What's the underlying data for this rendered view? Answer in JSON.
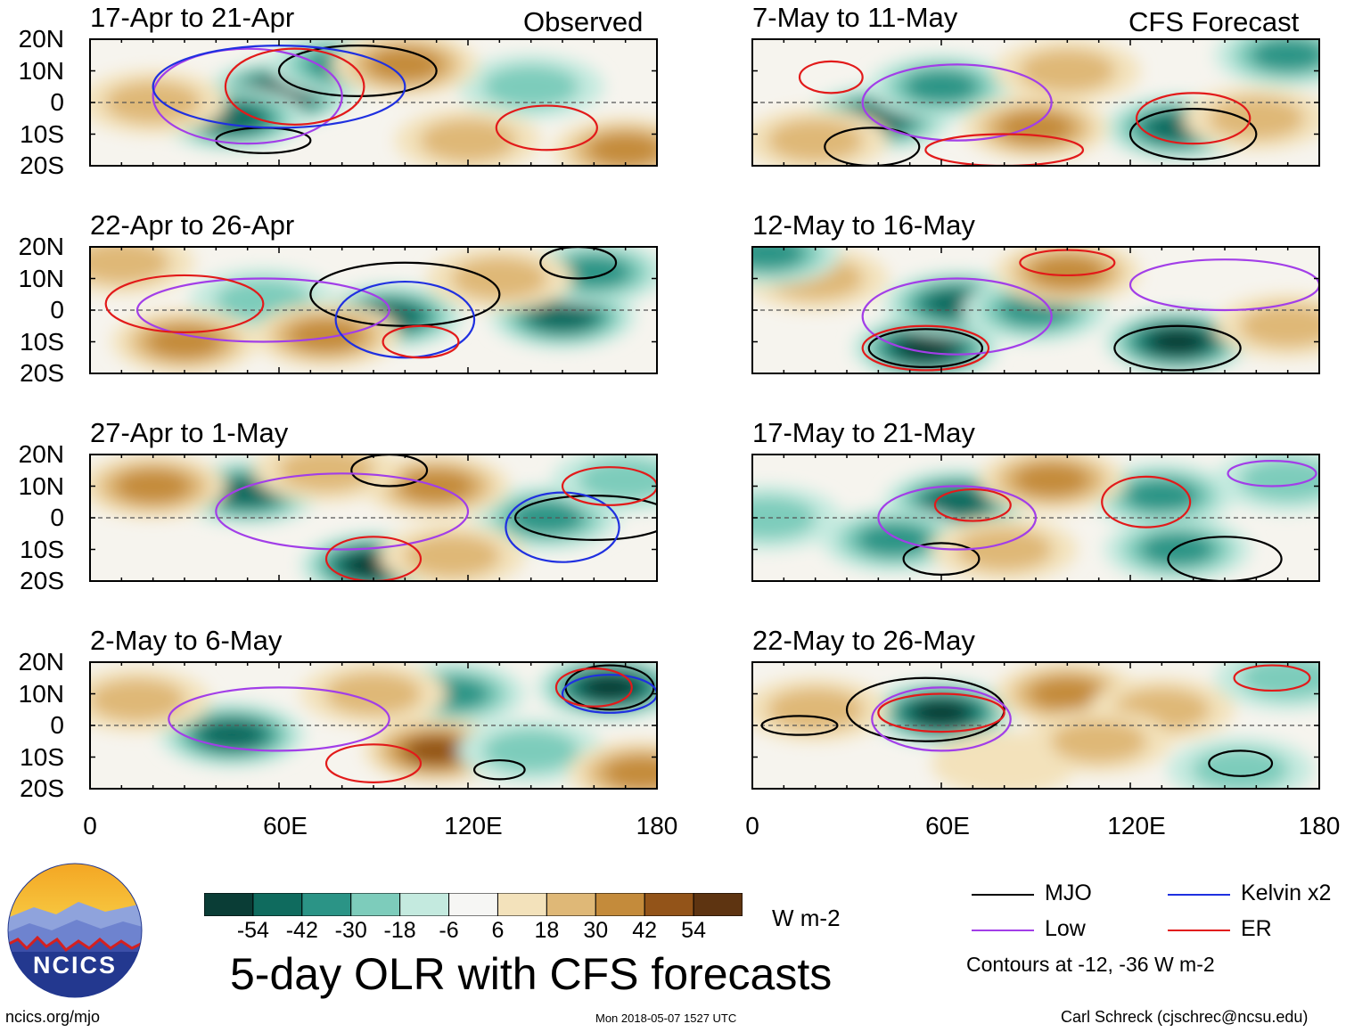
{
  "chart_data": {
    "type": "heatmap",
    "title": "5-day OLR with CFS forecasts",
    "unit": "W m-2",
    "column_headers": [
      "Observed",
      "CFS Forecast"
    ],
    "lat_labels": [
      "20N",
      "10N",
      "0",
      "10S",
      "20S"
    ],
    "lon_labels": [
      "0",
      "60E",
      "120E",
      "180"
    ],
    "lat_range": [
      -20,
      20
    ],
    "lon_range": [
      0,
      180
    ],
    "contour_levels_text": "Contours at -12, -36 W m-2",
    "colorbar": {
      "ticks": [
        "-54",
        "-42",
        "-30",
        "-18",
        "-6",
        "6",
        "18",
        "30",
        "42",
        "54"
      ],
      "colors": [
        "#0a3d36",
        "#0f6b5e",
        "#2b9486",
        "#7dccbb",
        "#c4eadf",
        "#f6f6f4",
        "#f3e2bb",
        "#dfb877",
        "#c48b3b",
        "#935419",
        "#5e3411"
      ]
    },
    "legend": [
      {
        "label": "MJO",
        "color": "#000000"
      },
      {
        "label": "Kelvin x2",
        "color": "#1f30e0"
      },
      {
        "label": "Low",
        "color": "#a23ee8"
      },
      {
        "label": "ER",
        "color": "#e21a1a"
      }
    ],
    "panels": [
      {
        "title": "17-Apr to 21-Apr",
        "column": "Observed",
        "anomalies": [
          {
            "lon": 60,
            "lat": 3,
            "value": -54
          },
          {
            "lon": 45,
            "lat": -5,
            "value": -48
          },
          {
            "lon": 80,
            "lat": 12,
            "value": -30
          },
          {
            "lon": 140,
            "lat": 5,
            "value": -18
          },
          {
            "lon": 100,
            "lat": 12,
            "value": 30
          },
          {
            "lon": 20,
            "lat": 0,
            "value": 18
          },
          {
            "lon": 170,
            "lat": -15,
            "value": 30
          },
          {
            "lon": 120,
            "lat": -12,
            "value": 18
          }
        ],
        "contours": [
          {
            "type": "MJO",
            "lon": 85,
            "lat": 10,
            "rlon": 25,
            "rlat": 8
          },
          {
            "type": "MJO",
            "lon": 55,
            "lat": -12,
            "rlon": 15,
            "rlat": 4
          },
          {
            "type": "Low",
            "lon": 50,
            "lat": 2,
            "rlon": 30,
            "rlat": 15
          },
          {
            "type": "Kelvin x2",
            "lon": 60,
            "lat": 5,
            "rlon": 40,
            "rlat": 13
          },
          {
            "type": "ER",
            "lon": 65,
            "lat": 5,
            "rlon": 22,
            "rlat": 12
          },
          {
            "type": "ER",
            "lon": 145,
            "lat": -8,
            "rlon": 16,
            "rlat": 7
          }
        ]
      },
      {
        "title": "22-Apr to 26-Apr",
        "column": "Observed",
        "anomalies": [
          {
            "lon": 95,
            "lat": -2,
            "value": -42
          },
          {
            "lon": 150,
            "lat": -2,
            "value": -42
          },
          {
            "lon": 160,
            "lat": 12,
            "value": -30
          },
          {
            "lon": 55,
            "lat": 3,
            "value": -18
          },
          {
            "lon": 30,
            "lat": -10,
            "value": 30
          },
          {
            "lon": 75,
            "lat": -8,
            "value": 30
          },
          {
            "lon": 130,
            "lat": 10,
            "value": 18
          },
          {
            "lon": 10,
            "lat": 15,
            "value": 18
          }
        ],
        "contours": [
          {
            "type": "MJO",
            "lon": 100,
            "lat": 5,
            "rlon": 30,
            "rlat": 10
          },
          {
            "type": "MJO",
            "lon": 155,
            "lat": 15,
            "rlon": 12,
            "rlat": 5
          },
          {
            "type": "Low",
            "lon": 55,
            "lat": 0,
            "rlon": 40,
            "rlat": 10
          },
          {
            "type": "Kelvin x2",
            "lon": 100,
            "lat": -3,
            "rlon": 22,
            "rlat": 12
          },
          {
            "type": "ER",
            "lon": 30,
            "lat": 2,
            "rlon": 25,
            "rlat": 9
          },
          {
            "type": "ER",
            "lon": 105,
            "lat": -10,
            "rlon": 12,
            "rlat": 5
          }
        ]
      },
      {
        "title": "27-Apr to 1-May",
        "column": "Observed",
        "anomalies": [
          {
            "lon": 50,
            "lat": 8,
            "value": -42
          },
          {
            "lon": 90,
            "lat": -15,
            "value": -54
          },
          {
            "lon": 145,
            "lat": 0,
            "value": -30
          },
          {
            "lon": 20,
            "lat": 10,
            "value": 30
          },
          {
            "lon": 110,
            "lat": 10,
            "value": 30
          },
          {
            "lon": 115,
            "lat": -12,
            "value": 18
          },
          {
            "lon": 170,
            "lat": 12,
            "value": -18
          },
          {
            "lon": 75,
            "lat": 15,
            "value": 18
          }
        ],
        "contours": [
          {
            "type": "MJO",
            "lon": 95,
            "lat": 15,
            "rlon": 12,
            "rlat": 5
          },
          {
            "type": "MJO",
            "lon": 160,
            "lat": 0,
            "rlon": 25,
            "rlat": 7
          },
          {
            "type": "Low",
            "lon": 80,
            "lat": 2,
            "rlon": 40,
            "rlat": 12
          },
          {
            "type": "Kelvin x2",
            "lon": 150,
            "lat": -3,
            "rlon": 18,
            "rlat": 11
          },
          {
            "type": "ER",
            "lon": 90,
            "lat": -13,
            "rlon": 15,
            "rlat": 7
          },
          {
            "type": "ER",
            "lon": 165,
            "lat": 10,
            "rlon": 15,
            "rlat": 6
          }
        ]
      },
      {
        "title": "2-May to 6-May",
        "column": "Observed",
        "anomalies": [
          {
            "lon": 165,
            "lat": 12,
            "value": -54
          },
          {
            "lon": 45,
            "lat": -3,
            "value": -42
          },
          {
            "lon": 115,
            "lat": 10,
            "value": -30
          },
          {
            "lon": 110,
            "lat": -8,
            "value": 42
          },
          {
            "lon": 90,
            "lat": 10,
            "value": 18
          },
          {
            "lon": 15,
            "lat": 8,
            "value": 18
          },
          {
            "lon": 140,
            "lat": -8,
            "value": -18
          },
          {
            "lon": 175,
            "lat": -15,
            "value": 30
          }
        ],
        "contours": [
          {
            "type": "MJO",
            "lon": 165,
            "lat": 12,
            "rlon": 14,
            "rlat": 7
          },
          {
            "type": "MJO",
            "lon": 130,
            "lat": -14,
            "rlon": 8,
            "rlat": 3
          },
          {
            "type": "Low",
            "lon": 60,
            "lat": 2,
            "rlon": 35,
            "rlat": 10
          },
          {
            "type": "Kelvin x2",
            "lon": 165,
            "lat": 10,
            "rlon": 15,
            "rlat": 6
          },
          {
            "type": "ER",
            "lon": 90,
            "lat": -12,
            "rlon": 15,
            "rlat": 6
          },
          {
            "type": "ER",
            "lon": 160,
            "lat": 12,
            "rlon": 12,
            "rlat": 6
          }
        ]
      },
      {
        "title": "7-May to 11-May",
        "column": "CFS Forecast",
        "anomalies": [
          {
            "lon": 135,
            "lat": -8,
            "value": -42
          },
          {
            "lon": 40,
            "lat": -5,
            "value": -42
          },
          {
            "lon": 60,
            "lat": 5,
            "value": -30
          },
          {
            "lon": 170,
            "lat": 15,
            "value": -30
          },
          {
            "lon": 90,
            "lat": -8,
            "value": 30
          },
          {
            "lon": 100,
            "lat": 10,
            "value": 18
          },
          {
            "lon": 20,
            "lat": -12,
            "value": 18
          },
          {
            "lon": 160,
            "lat": -5,
            "value": 18
          }
        ],
        "contours": [
          {
            "type": "MJO",
            "lon": 38,
            "lat": -14,
            "rlon": 15,
            "rlat": 6
          },
          {
            "type": "MJO",
            "lon": 140,
            "lat": -10,
            "rlon": 20,
            "rlat": 8
          },
          {
            "type": "Low",
            "lon": 65,
            "lat": 0,
            "rlon": 30,
            "rlat": 12
          },
          {
            "type": "ER",
            "lon": 140,
            "lat": -5,
            "rlon": 18,
            "rlat": 8
          },
          {
            "type": "ER",
            "lon": 25,
            "lat": 8,
            "rlon": 10,
            "rlat": 5
          },
          {
            "type": "ER",
            "lon": 80,
            "lat": -15,
            "rlon": 25,
            "rlat": 5
          }
        ]
      },
      {
        "title": "12-May to 16-May",
        "column": "CFS Forecast",
        "anomalies": [
          {
            "lon": 55,
            "lat": -12,
            "value": -54
          },
          {
            "lon": 135,
            "lat": -10,
            "value": -54
          },
          {
            "lon": 65,
            "lat": 2,
            "value": -42
          },
          {
            "lon": 90,
            "lat": 0,
            "value": -30
          },
          {
            "lon": 100,
            "lat": 12,
            "value": 30
          },
          {
            "lon": 170,
            "lat": -5,
            "value": 18
          },
          {
            "lon": 20,
            "lat": 10,
            "value": 18
          },
          {
            "lon": 5,
            "lat": 18,
            "value": -30
          }
        ],
        "contours": [
          {
            "type": "MJO",
            "lon": 55,
            "lat": -12,
            "rlon": 18,
            "rlat": 6
          },
          {
            "type": "MJO",
            "lon": 135,
            "lat": -12,
            "rlon": 20,
            "rlat": 7
          },
          {
            "type": "Low",
            "lon": 65,
            "lat": -2,
            "rlon": 30,
            "rlat": 12
          },
          {
            "type": "Low",
            "lon": 150,
            "lat": 8,
            "rlon": 30,
            "rlat": 8
          },
          {
            "type": "ER",
            "lon": 55,
            "lat": -12,
            "rlon": 20,
            "rlat": 7
          },
          {
            "type": "ER",
            "lon": 100,
            "lat": 15,
            "rlon": 15,
            "rlat": 4
          }
        ]
      },
      {
        "title": "17-May to 21-May",
        "column": "CFS Forecast",
        "anomalies": [
          {
            "lon": 65,
            "lat": 5,
            "value": -42
          },
          {
            "lon": 130,
            "lat": 7,
            "value": -30
          },
          {
            "lon": 45,
            "lat": -7,
            "value": -30
          },
          {
            "lon": 135,
            "lat": -10,
            "value": -30
          },
          {
            "lon": 95,
            "lat": 12,
            "value": 30
          },
          {
            "lon": 80,
            "lat": -10,
            "value": 18
          },
          {
            "lon": 5,
            "lat": 0,
            "value": -18
          },
          {
            "lon": 170,
            "lat": 12,
            "value": -18
          }
        ],
        "contours": [
          {
            "type": "MJO",
            "lon": 60,
            "lat": -13,
            "rlon": 12,
            "rlat": 5
          },
          {
            "type": "MJO",
            "lon": 150,
            "lat": -13,
            "rlon": 18,
            "rlat": 7
          },
          {
            "type": "Low",
            "lon": 65,
            "lat": 0,
            "rlon": 25,
            "rlat": 10
          },
          {
            "type": "Low",
            "lon": 165,
            "lat": 14,
            "rlon": 14,
            "rlat": 4
          },
          {
            "type": "ER",
            "lon": 70,
            "lat": 4,
            "rlon": 12,
            "rlat": 5
          },
          {
            "type": "ER",
            "lon": 125,
            "lat": 5,
            "rlon": 14,
            "rlat": 8
          }
        ]
      },
      {
        "title": "22-May to 26-May",
        "column": "CFS Forecast",
        "anomalies": [
          {
            "lon": 60,
            "lat": 4,
            "value": -54
          },
          {
            "lon": 100,
            "lat": 10,
            "value": 30
          },
          {
            "lon": 155,
            "lat": -14,
            "value": -18
          },
          {
            "lon": 20,
            "lat": 5,
            "value": 18
          },
          {
            "lon": 130,
            "lat": 5,
            "value": 18
          },
          {
            "lon": 170,
            "lat": 15,
            "value": -18
          },
          {
            "lon": 80,
            "lat": -12,
            "value": 6
          },
          {
            "lon": 110,
            "lat": -5,
            "value": 18
          }
        ],
        "contours": [
          {
            "type": "MJO",
            "lon": 55,
            "lat": 5,
            "rlon": 25,
            "rlat": 10
          },
          {
            "type": "MJO",
            "lon": 15,
            "lat": 0,
            "rlon": 12,
            "rlat": 3
          },
          {
            "type": "MJO",
            "lon": 155,
            "lat": -12,
            "rlon": 10,
            "rlat": 4
          },
          {
            "type": "Low",
            "lon": 60,
            "lat": 2,
            "rlon": 22,
            "rlat": 10
          },
          {
            "type": "ER",
            "lon": 60,
            "lat": 4,
            "rlon": 20,
            "rlat": 6
          },
          {
            "type": "ER",
            "lon": 165,
            "lat": 15,
            "rlon": 12,
            "rlat": 4
          }
        ]
      }
    ]
  },
  "logo": {
    "text": "NCICS"
  },
  "footer": {
    "left": "ncics.org/mjo",
    "center": "Mon 2018-05-07 1527 UTC",
    "right": "Carl Schreck (cjschrec@ncsu.edu)"
  }
}
